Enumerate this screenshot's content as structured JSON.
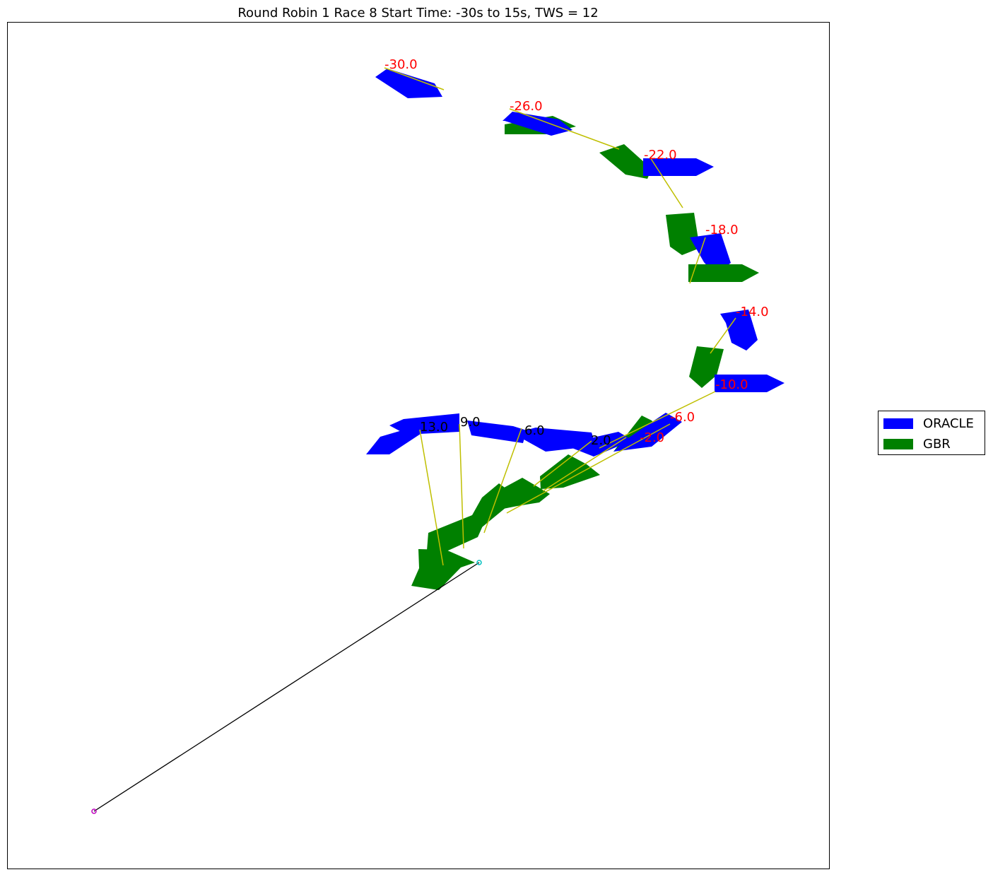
{
  "chart_data": {
    "type": "scatter",
    "title": "Round Robin 1 Race 8 Start Time: -30s to 15s, TWS = 12",
    "xlabel": "",
    "ylabel": "",
    "xlim": [
      0,
      1163
    ],
    "ylim": [
      0,
      1198
    ],
    "grid": false,
    "legend_position": "right",
    "colors": {
      "ORACLE": "#0000ff",
      "GBR": "#008000",
      "connector": "#bfbf00",
      "pre_start_label": "#ff0000",
      "post_start_label": "#000000",
      "start_line": "#000000",
      "pin_mark": "#bf00bf",
      "committee_mark": "#00bfbf"
    },
    "legend": [
      {
        "name": "ORACLE",
        "color": "#0000ff"
      },
      {
        "name": "GBR",
        "color": "#008000"
      }
    ],
    "time_labels": [
      {
        "text": "-30.0",
        "x": 534,
        "y": 1132,
        "phase": "pre"
      },
      {
        "text": "-26.0",
        "x": 711,
        "y": 1073,
        "phase": "pre"
      },
      {
        "text": "-22.0",
        "x": 901,
        "y": 1004,
        "phase": "pre"
      },
      {
        "text": "-18.0",
        "x": 988,
        "y": 898,
        "phase": "pre"
      },
      {
        "text": "-14.0",
        "x": 1031,
        "y": 782,
        "phase": "pre"
      },
      {
        "text": "-10.0",
        "x": 1002,
        "y": 679,
        "phase": "pre"
      },
      {
        "text": "-6.0",
        "x": 938,
        "y": 633,
        "phase": "pre"
      },
      {
        "text": "-2.0",
        "x": 895,
        "y": 604,
        "phase": "pre"
      },
      {
        "text": "2.0",
        "x": 826,
        "y": 600,
        "phase": "post"
      },
      {
        "text": "6.0",
        "x": 732,
        "y": 614,
        "phase": "post"
      },
      {
        "text": "9.0",
        "x": 641,
        "y": 626,
        "phase": "post"
      },
      {
        "text": "13.0",
        "x": 584,
        "y": 619,
        "phase": "post"
      }
    ],
    "connectors": [
      {
        "t": "-30.0",
        "from": [
          534,
          1133
        ],
        "to": [
          618,
          1102
        ]
      },
      {
        "t": "-26.0",
        "from": [
          711,
          1075
        ],
        "to": [
          866,
          1018
        ]
      },
      {
        "t": "-22.0",
        "from": [
          910,
          1006
        ],
        "to": [
          956,
          935
        ]
      },
      {
        "t": "-18.0",
        "from": [
          988,
          893
        ],
        "to": [
          966,
          828
        ]
      },
      {
        "t": "-14.0",
        "from": [
          1031,
          779
        ],
        "to": [
          995,
          729
        ]
      },
      {
        "t": "-10.0",
        "from": [
          1002,
          675
        ],
        "to": [
          838,
          595
        ]
      },
      {
        "t": "-6.0",
        "from": [
          938,
          629
        ],
        "to": [
          707,
          503
        ]
      },
      {
        "t": "-2.0",
        "from": [
          876,
          610
        ],
        "to": [
          758,
          534
        ]
      },
      {
        "t": "2.0",
        "from": [
          827,
          605
        ],
        "to": [
          745,
          541
        ]
      },
      {
        "t": "6.0",
        "from": [
          728,
          623
        ],
        "to": [
          675,
          475
        ]
      },
      {
        "t": "9.0",
        "from": [
          640,
          629
        ],
        "to": [
          646,
          453
        ]
      },
      {
        "t": "13.0",
        "from": [
          584,
          621
        ],
        "to": [
          617,
          429
        ]
      }
    ],
    "boats": [
      {
        "team": "ORACLE",
        "t": "-30.0",
        "points": [
          [
            521,
            1120
          ],
          [
            538,
            1132
          ],
          [
            605,
            1111
          ],
          [
            616,
            1092
          ],
          [
            567,
            1090
          ]
        ]
      },
      {
        "team": "GBR",
        "t": "-26.0",
        "points": [
          [
            704,
            1039
          ],
          [
            704,
            1053
          ],
          [
            772,
            1065
          ],
          [
            805,
            1050
          ],
          [
            762,
            1039
          ]
        ]
      },
      {
        "team": "ORACLE",
        "t": "-26.0",
        "points": [
          [
            701,
            1058
          ],
          [
            715,
            1071
          ],
          [
            781,
            1060
          ],
          [
            800,
            1045
          ],
          [
            770,
            1037
          ],
          [
            704,
            1058
          ]
        ]
      },
      {
        "team": "GBR",
        "t": "-22.0",
        "points": [
          [
            838,
            1013
          ],
          [
            873,
            1025
          ],
          [
            912,
            990
          ],
          [
            906,
            976
          ],
          [
            875,
            982
          ]
        ]
      },
      {
        "team": "ORACLE",
        "t": "-22.0",
        "points": [
          [
            900,
            980
          ],
          [
            900,
            1005
          ],
          [
            975,
            1005
          ],
          [
            1000,
            993
          ],
          [
            975,
            980
          ]
        ]
      },
      {
        "team": "GBR",
        "t": "-18.0",
        "points": [
          [
            932,
            925
          ],
          [
            938,
            880
          ],
          [
            955,
            868
          ],
          [
            980,
            878
          ],
          [
            972,
            928
          ]
        ]
      },
      {
        "team": "ORACLE",
        "t": "-18.0",
        "points": [
          [
            966,
            893
          ],
          [
            1010,
            899
          ],
          [
            1024,
            857
          ],
          [
            1012,
            848
          ],
          [
            995,
            848
          ],
          [
            986,
            858
          ]
        ]
      },
      {
        "team": "GBR",
        "t": "-18.0",
        "points": [
          [
            964,
            830
          ],
          [
            964,
            855
          ],
          [
            1040,
            855
          ],
          [
            1064,
            843
          ],
          [
            1040,
            830
          ]
        ]
      },
      {
        "team": "ORACLE",
        "t": "-14.0",
        "points": [
          [
            1009,
            785
          ],
          [
            1049,
            791
          ],
          [
            1062,
            748
          ],
          [
            1046,
            733
          ],
          [
            1025,
            744
          ],
          [
            1017,
            772
          ]
        ]
      },
      {
        "team": "GBR",
        "t": "-14.0",
        "points": [
          [
            976,
            739
          ],
          [
            1014,
            735
          ],
          [
            1004,
            698
          ],
          [
            983,
            680
          ],
          [
            965,
            696
          ]
        ]
      },
      {
        "team": "ORACLE",
        "t": "-10.0",
        "points": [
          [
            1001,
            674
          ],
          [
            1001,
            699
          ],
          [
            1075,
            699
          ],
          [
            1100,
            687
          ],
          [
            1075,
            674
          ]
        ]
      },
      {
        "team": "GBR",
        "t": "-6.0",
        "points": [
          [
            858,
            590
          ],
          [
            898,
            641
          ],
          [
            912,
            634
          ],
          [
            926,
            618
          ],
          [
            912,
            605
          ]
        ]
      },
      {
        "team": "ORACLE",
        "t": "-6.0",
        "points": [
          [
            858,
            590
          ],
          [
            912,
            597
          ],
          [
            955,
            632
          ],
          [
            932,
            645
          ],
          [
            880,
            610
          ]
        ]
      },
      {
        "team": "ORACLE",
        "t": "-2.0",
        "points": [
          [
            797,
            596
          ],
          [
            830,
            583
          ],
          [
            885,
            606
          ],
          [
            865,
            618
          ],
          [
            812,
            606
          ]
        ]
      },
      {
        "team": "ORACLE",
        "t": "2.0",
        "points": [
          [
            726,
            610
          ],
          [
            733,
            620
          ],
          [
            748,
            624
          ],
          [
            827,
            617
          ],
          [
            833,
            598
          ],
          [
            762,
            590
          ],
          [
            726,
            610
          ]
        ]
      },
      {
        "team": "ORACLE",
        "t": "6.0",
        "points": [
          [
            651,
            634
          ],
          [
            716,
            626
          ],
          [
            735,
            620
          ],
          [
            730,
            602
          ],
          [
            657,
            613
          ],
          [
            651,
            634
          ]
        ]
      },
      {
        "team": "ORACLE",
        "t": "9.0",
        "points": [
          [
            561,
            636
          ],
          [
            640,
            644
          ],
          [
            640,
            618
          ],
          [
            565,
            614
          ],
          [
            541,
            627
          ]
        ]
      },
      {
        "team": "ORACLE",
        "t": "13.0",
        "points": [
          [
            508,
            586
          ],
          [
            541,
            586
          ],
          [
            588,
            617
          ],
          [
            586,
            628
          ],
          [
            528,
            611
          ]
        ]
      },
      {
        "team": "GBR",
        "t": "-2.0",
        "points": [
          [
            755,
            537
          ],
          [
            754,
            555
          ],
          [
            794,
            586
          ],
          [
            820,
            572
          ],
          [
            839,
            557
          ],
          [
            787,
            539
          ]
        ]
      },
      {
        "team": "GBR",
        "t": "2.0",
        "points": [
          [
            682,
            505
          ],
          [
            681,
            527
          ],
          [
            729,
            553
          ],
          [
            768,
            530
          ],
          [
            753,
            518
          ],
          [
            722,
            513
          ]
        ]
      },
      {
        "team": "GBR",
        "t": "6.0",
        "points": [
          [
            622,
            476
          ],
          [
            672,
            483
          ],
          [
            723,
            525
          ],
          [
            696,
            545
          ],
          [
            672,
            525
          ],
          [
            658,
            500
          ]
        ]
      },
      {
        "team": "GBR",
        "t": "9.0",
        "points": [
          [
            594,
            450
          ],
          [
            596,
            475
          ],
          [
            658,
            500
          ],
          [
            682,
            505
          ],
          [
            666,
            469
          ],
          [
            622,
            449
          ]
        ]
      },
      {
        "team": "GBR",
        "t": "13.0",
        "points": [
          [
            572,
            400
          ],
          [
            583,
            425
          ],
          [
            582,
            452
          ],
          [
            621,
            451
          ],
          [
            662,
            433
          ],
          [
            642,
            426
          ],
          [
            611,
            394
          ]
        ]
      }
    ],
    "start_line": {
      "from": [
        123,
        81
      ],
      "to": [
        668,
        433
      ]
    },
    "marks": [
      {
        "name": "pin",
        "x": 123,
        "y": 81
      },
      {
        "name": "committee",
        "x": 668,
        "y": 433
      }
    ]
  }
}
